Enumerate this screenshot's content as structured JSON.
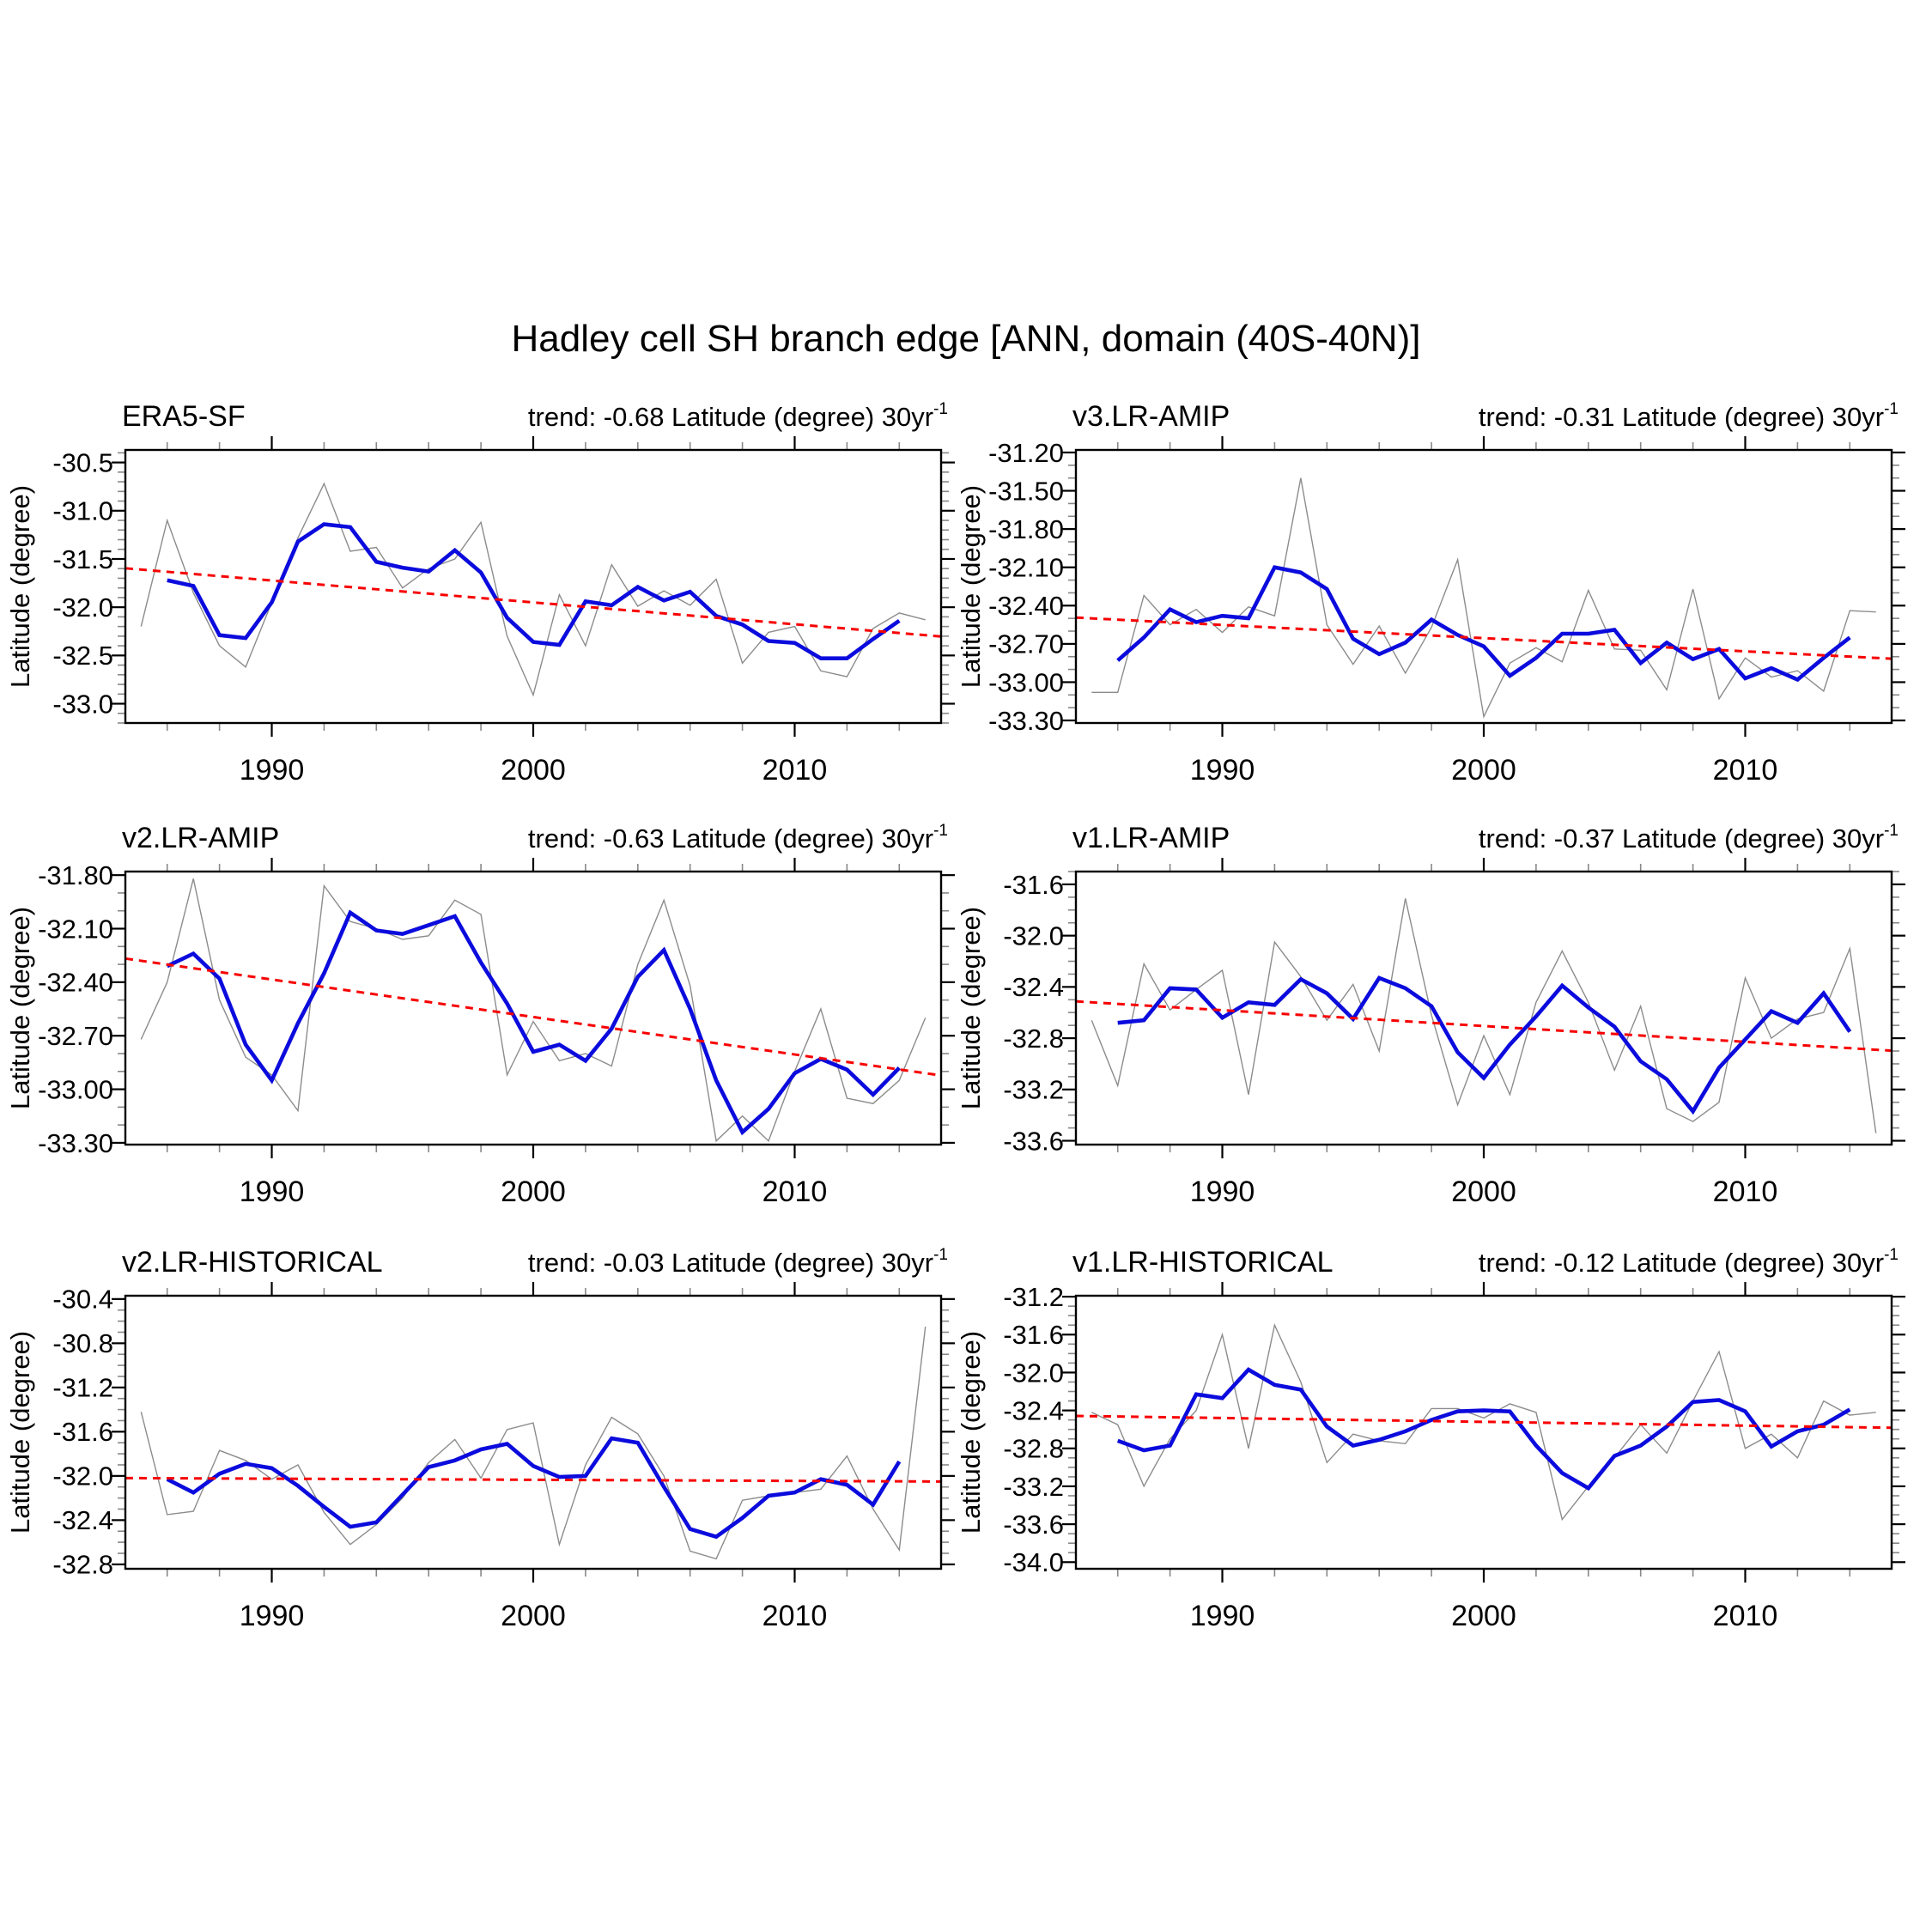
{
  "title": "Hadley cell SH branch edge [ANN, domain (40S-40N)]",
  "colors": {
    "annual_line": "#8c8c8c",
    "smoothed_line": "#0b0bdd",
    "trend_line": "#f80000",
    "frame": "#000000",
    "minor_tick": "#888888"
  },
  "chart_data": [
    {
      "type": "line",
      "title": "ERA5-SF",
      "trend_label": "trend: -0.68 Latitude (degree) 30yr",
      "trend_sup": "-1",
      "trend_per_30yr": -0.68,
      "ylabel": "Latitude (degree)",
      "yticks": [
        "-30.5",
        "-31.0",
        "-31.5",
        "-32.0",
        "-32.5",
        "-33.0"
      ],
      "xticks": [
        "1990",
        "2000",
        "2010"
      ],
      "ylim": [
        -30.37,
        -33.2
      ],
      "xlim": [
        1984.4,
        2015.6
      ],
      "trend_1985": -31.61,
      "trend_2015": -32.29,
      "series": [
        {
          "name": "annual",
          "start_year": 1985,
          "values": [
            -32.2,
            -31.1,
            -31.85,
            -32.4,
            -32.62,
            -31.95,
            -31.28,
            -30.72,
            -31.42,
            -31.38,
            -31.8,
            -31.6,
            -31.5,
            -31.12,
            -32.3,
            -32.91,
            -31.87,
            -32.4,
            -31.56,
            -31.99,
            -31.83,
            -31.98,
            -31.71,
            -32.58,
            -32.26,
            -32.2,
            -32.66,
            -32.72,
            -32.22,
            -32.06,
            -32.13
          ]
        },
        {
          "name": "smoothed",
          "start_year": 1986,
          "values": [
            -31.72,
            -31.78,
            -32.29,
            -32.32,
            -31.95,
            -31.32,
            -31.14,
            -31.17,
            -31.53,
            -31.59,
            -31.63,
            -31.41,
            -31.64,
            -32.11,
            -32.36,
            -32.39,
            -31.94,
            -31.98,
            -31.79,
            -31.93,
            -31.84,
            -32.09,
            -32.18,
            -32.35,
            -32.37,
            -32.53,
            -32.53,
            -32.33,
            -32.14
          ]
        }
      ]
    },
    {
      "type": "line",
      "title": "v3.LR-AMIP",
      "trend_label": "trend: -0.31 Latitude (degree) 30yr",
      "trend_sup": "-1",
      "trend_per_30yr": -0.31,
      "ylabel": "Latitude (degree)",
      "yticks": [
        "-31.20",
        "-31.50",
        "-31.80",
        "-32.10",
        "-32.40",
        "-32.70",
        "-33.00",
        "-33.30"
      ],
      "xticks": [
        "1990",
        "2000",
        "2010"
      ],
      "ylim": [
        -31.18,
        -33.32
      ],
      "xlim": [
        1984.4,
        2015.6
      ],
      "trend_1985": -32.5,
      "trend_2015": -32.81,
      "series": [
        {
          "name": "annual",
          "start_year": 1985,
          "values": [
            -33.08,
            -33.08,
            -32.32,
            -32.55,
            -32.43,
            -32.61,
            -32.41,
            -32.48,
            -31.4,
            -32.55,
            -32.86,
            -32.56,
            -32.93,
            -32.57,
            -32.04,
            -33.27,
            -32.85,
            -32.73,
            -32.84,
            -32.28,
            -32.74,
            -32.75,
            -33.06,
            -32.27,
            -33.13,
            -32.81,
            -32.96,
            -32.91,
            -33.07,
            -32.44,
            -32.45
          ]
        },
        {
          "name": "smoothed",
          "start_year": 1986,
          "values": [
            -32.83,
            -32.65,
            -32.43,
            -32.53,
            -32.48,
            -32.5,
            -32.1,
            -32.14,
            -32.27,
            -32.66,
            -32.78,
            -32.69,
            -32.51,
            -32.63,
            -32.72,
            -32.95,
            -32.81,
            -32.62,
            -32.62,
            -32.59,
            -32.85,
            -32.69,
            -32.82,
            -32.74,
            -32.97,
            -32.89,
            -32.98,
            -32.81,
            -32.65
          ]
        }
      ]
    },
    {
      "type": "line",
      "title": "v2.LR-AMIP",
      "trend_label": "trend: -0.63 Latitude (degree) 30yr",
      "trend_sup": "-1",
      "trend_per_30yr": -0.63,
      "ylabel": "Latitude (degree)",
      "yticks": [
        "-31.80",
        "-32.10",
        "-32.40",
        "-32.70",
        "-33.00",
        "-33.30"
      ],
      "xticks": [
        "1990",
        "2000",
        "2010"
      ],
      "ylim": [
        -31.78,
        -33.31
      ],
      "xlim": [
        1984.4,
        2015.6
      ],
      "trend_1985": -32.28,
      "trend_2015": -32.91,
      "series": [
        {
          "name": "annual",
          "start_year": 1985,
          "values": [
            -32.72,
            -32.4,
            -31.82,
            -32.5,
            -32.82,
            -32.92,
            -33.12,
            -31.86,
            -32.06,
            -32.1,
            -32.16,
            -32.14,
            -31.94,
            -32.02,
            -32.92,
            -32.62,
            -32.84,
            -32.8,
            -32.87,
            -32.3,
            -31.94,
            -32.42,
            -33.29,
            -33.15,
            -33.29,
            -32.9,
            -32.55,
            -33.05,
            -33.08,
            -32.95,
            -32.6
          ]
        },
        {
          "name": "smoothed",
          "start_year": 1986,
          "values": [
            -32.31,
            -32.24,
            -32.38,
            -32.75,
            -32.95,
            -32.63,
            -32.35,
            -32.01,
            -32.11,
            -32.13,
            -32.08,
            -32.03,
            -32.29,
            -32.52,
            -32.79,
            -32.75,
            -32.84,
            -32.66,
            -32.37,
            -32.22,
            -32.55,
            -32.95,
            -33.24,
            -33.11,
            -32.91,
            -32.83,
            -32.89,
            -33.03,
            -32.88
          ]
        }
      ]
    },
    {
      "type": "line",
      "title": "v1.LR-AMIP",
      "trend_label": "trend: -0.37 Latitude (degree) 30yr",
      "trend_sup": "-1",
      "trend_per_30yr": -0.37,
      "ylabel": "Latitude (degree)",
      "yticks": [
        "-31.6",
        "-32.0",
        "-32.4",
        "-32.8",
        "-33.2",
        "-33.6"
      ],
      "xticks": [
        "1990",
        "2000",
        "2010"
      ],
      "ylim": [
        -31.5,
        -33.63
      ],
      "xlim": [
        1984.4,
        2015.6
      ],
      "trend_1985": -32.52,
      "trend_2015": -32.89,
      "series": [
        {
          "name": "annual",
          "start_year": 1985,
          "values": [
            -32.66,
            -33.17,
            -32.22,
            -32.58,
            -32.42,
            -32.27,
            -33.24,
            -32.05,
            -32.32,
            -32.66,
            -32.38,
            -32.9,
            -31.71,
            -32.62,
            -33.32,
            -32.78,
            -33.24,
            -32.52,
            -32.12,
            -32.52,
            -33.05,
            -32.55,
            -33.35,
            -33.45,
            -33.3,
            -32.33,
            -32.8,
            -32.65,
            -32.6,
            -32.1,
            -33.54
          ]
        },
        {
          "name": "smoothed",
          "start_year": 1986,
          "values": [
            -32.68,
            -32.66,
            -32.41,
            -32.42,
            -32.64,
            -32.52,
            -32.54,
            -32.34,
            -32.45,
            -32.65,
            -32.33,
            -32.41,
            -32.55,
            -32.91,
            -33.11,
            -32.85,
            -32.63,
            -32.39,
            -32.56,
            -32.71,
            -32.98,
            -33.12,
            -33.37,
            -33.03,
            -32.81,
            -32.59,
            -32.68,
            -32.45,
            -32.75
          ]
        }
      ]
    },
    {
      "type": "line",
      "title": "v2.LR-HISTORICAL",
      "trend_label": "trend: -0.03 Latitude (degree) 30yr",
      "trend_sup": "-1",
      "trend_per_30yr": -0.03,
      "ylabel": "Latitude (degree)",
      "yticks": [
        "-30.4",
        "-30.8",
        "-31.2",
        "-31.6",
        "-32.0",
        "-32.4",
        "-32.8"
      ],
      "xticks": [
        "1990",
        "2000",
        "2010"
      ],
      "ylim": [
        -30.37,
        -32.84
      ],
      "xlim": [
        1984.4,
        2015.6
      ],
      "trend_1985": -32.02,
      "trend_2015": -32.05,
      "series": [
        {
          "name": "annual",
          "start_year": 1985,
          "values": [
            -31.42,
            -32.35,
            -32.32,
            -31.77,
            -31.86,
            -32.03,
            -31.9,
            -32.33,
            -32.62,
            -32.44,
            -32.2,
            -31.88,
            -31.67,
            -32.02,
            -31.58,
            -31.52,
            -32.62,
            -31.9,
            -31.47,
            -31.62,
            -32.0,
            -32.68,
            -32.75,
            -32.22,
            -32.18,
            -32.15,
            -32.12,
            -31.82,
            -32.3,
            -32.67,
            -30.65
          ]
        },
        {
          "name": "smoothed",
          "start_year": 1986,
          "values": [
            -32.03,
            -32.15,
            -31.98,
            -31.89,
            -31.93,
            -32.09,
            -32.28,
            -32.46,
            -32.42,
            -32.17,
            -31.92,
            -31.86,
            -31.76,
            -31.71,
            -31.91,
            -32.01,
            -32.0,
            -31.66,
            -31.7,
            -32.1,
            -32.48,
            -32.55,
            -32.38,
            -32.18,
            -32.15,
            -32.03,
            -32.08,
            -32.26,
            -31.87
          ]
        }
      ]
    },
    {
      "type": "line",
      "title": "v1.LR-HISTORICAL",
      "trend_label": "trend: -0.12 Latitude (degree) 30yr",
      "trend_sup": "-1",
      "trend_per_30yr": -0.12,
      "ylabel": "Latitude (degree)",
      "yticks": [
        "-31.2",
        "-31.6",
        "-32.0",
        "-32.4",
        "-32.8",
        "-33.2",
        "-33.6",
        "-34.0"
      ],
      "xticks": [
        "1990",
        "2000",
        "2010"
      ],
      "ylim": [
        -31.19,
        -34.07
      ],
      "xlim": [
        1984.4,
        2015.6
      ],
      "trend_1985": -32.46,
      "trend_2015": -32.58,
      "series": [
        {
          "name": "annual",
          "start_year": 1985,
          "values": [
            -32.42,
            -32.55,
            -33.2,
            -32.7,
            -32.4,
            -31.6,
            -32.8,
            -31.5,
            -32.1,
            -32.95,
            -32.65,
            -32.72,
            -32.75,
            -32.38,
            -32.38,
            -32.48,
            -32.33,
            -32.42,
            -33.55,
            -33.2,
            -32.9,
            -32.55,
            -32.85,
            -32.3,
            -31.78,
            -32.8,
            -32.65,
            -32.9,
            -32.3,
            -32.45,
            -32.42
          ]
        },
        {
          "name": "smoothed",
          "start_year": 1986,
          "values": [
            -32.72,
            -32.82,
            -32.77,
            -32.23,
            -32.27,
            -31.97,
            -32.13,
            -32.18,
            -32.57,
            -32.77,
            -32.71,
            -32.62,
            -32.5,
            -32.41,
            -32.4,
            -32.41,
            -32.77,
            -33.06,
            -33.22,
            -32.88,
            -32.77,
            -32.57,
            -32.31,
            -32.29,
            -32.41,
            -32.78,
            -32.62,
            -32.55,
            -32.39
          ]
        }
      ]
    }
  ]
}
